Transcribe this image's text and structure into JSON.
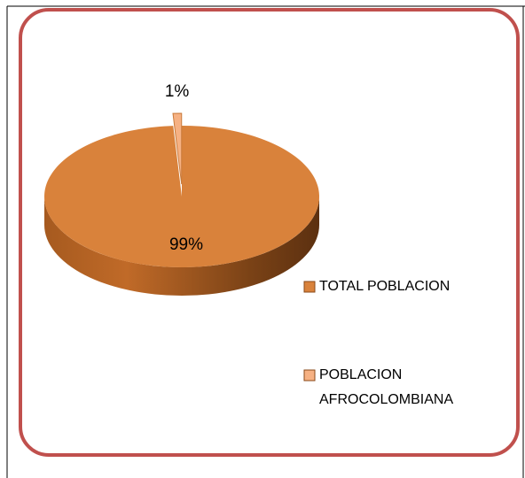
{
  "chart_data": {
    "type": "pie",
    "categories": [
      "TOTAL POBLACION",
      "POBLACION AFROCOLOMBIANA"
    ],
    "values": [
      99,
      1
    ],
    "value_labels": [
      "99%",
      "1%"
    ],
    "colors": [
      "#d9823b",
      "#f6b183"
    ],
    "legend": "right"
  }
}
